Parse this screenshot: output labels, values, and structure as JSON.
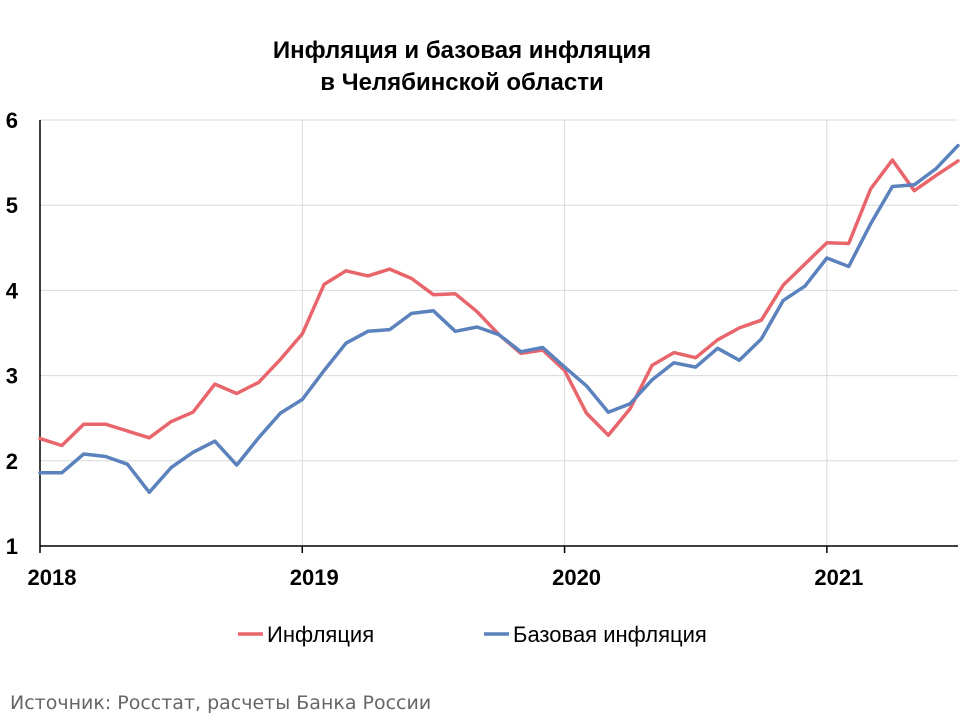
{
  "chart_data": {
    "type": "line",
    "title": [
      "Инфляция и базовая инфляция",
      "в  Челябинской области"
    ],
    "x_ticks": [
      "2018",
      "2019",
      "2020",
      "2021"
    ],
    "xlim": [
      2018.0,
      2021.5
    ],
    "ylim": [
      1,
      6
    ],
    "y_ticks": [
      1,
      2,
      3,
      4,
      5,
      6
    ],
    "grid": true,
    "legend_position": "bottom",
    "series": [
      {
        "name": "Инфляция",
        "color": "#e8666b",
        "values": [
          2.26,
          2.18,
          2.43,
          2.43,
          2.35,
          2.27,
          2.46,
          2.57,
          2.9,
          2.79,
          2.92,
          3.19,
          3.49,
          4.07,
          4.23,
          4.17,
          4.25,
          4.14,
          3.95,
          3.96,
          3.75,
          3.48,
          3.26,
          3.3,
          3.06,
          2.56,
          2.3,
          2.61,
          3.12,
          3.27,
          3.21,
          3.42,
          3.56,
          3.65,
          4.06,
          4.31,
          4.56,
          4.55,
          5.19,
          5.53,
          5.17,
          5.35,
          5.52
        ]
      },
      {
        "name": "Базовая инфляция",
        "color": "#5b82bd",
        "values": [
          1.86,
          1.86,
          2.08,
          2.05,
          1.96,
          1.63,
          1.92,
          2.1,
          2.23,
          1.95,
          2.27,
          2.56,
          2.72,
          3.06,
          3.38,
          3.52,
          3.54,
          3.73,
          3.76,
          3.52,
          3.57,
          3.48,
          3.28,
          3.33,
          3.1,
          2.88,
          2.57,
          2.67,
          2.95,
          3.15,
          3.1,
          3.32,
          3.18,
          3.43,
          3.88,
          4.05,
          4.38,
          4.28,
          4.78,
          5.22,
          5.24,
          5.43,
          5.7
        ]
      }
    ]
  },
  "source": "Источник: Росстат, расчеты Банка России"
}
